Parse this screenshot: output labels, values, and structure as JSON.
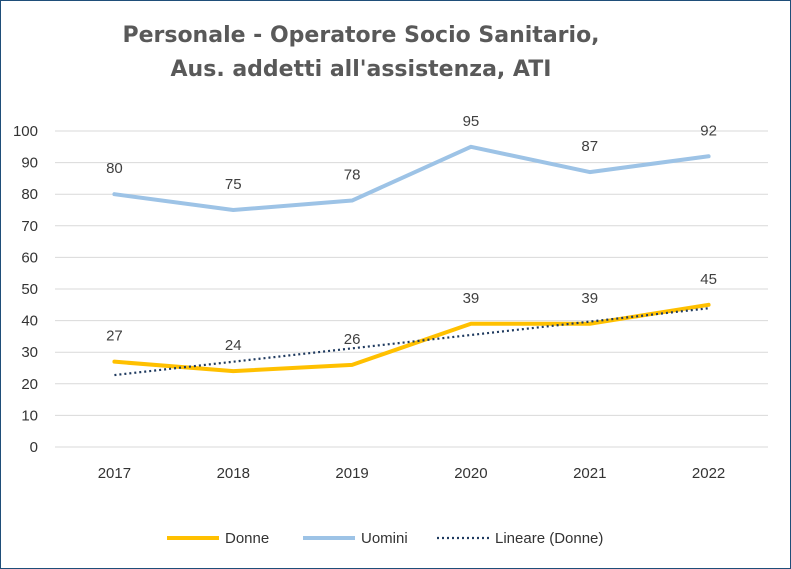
{
  "chart_data": {
    "type": "line",
    "title_lines": [
      "Personale - Operatore Socio Sanitario,",
      "Aus. addetti all'assistenza, ATI"
    ],
    "categories": [
      "2017",
      "2018",
      "2019",
      "2020",
      "2021",
      "2022"
    ],
    "ylim": [
      0,
      100
    ],
    "yticks": [
      0,
      10,
      20,
      30,
      40,
      50,
      60,
      70,
      80,
      90,
      100
    ],
    "grid": true,
    "legend_position": "bottom",
    "series": [
      {
        "name": "Donne",
        "values": [
          27,
          24,
          26,
          39,
          39,
          45
        ],
        "color": "#ffc000",
        "style": "solid"
      },
      {
        "name": "Uomini",
        "values": [
          80,
          75,
          78,
          95,
          87,
          92
        ],
        "color": "#9dc3e6",
        "style": "solid"
      }
    ],
    "trendline": {
      "name": "Lineare (Donne)",
      "of_series": "Donne",
      "type": "linear",
      "color": "#1f3a5f",
      "style": "dotted"
    }
  }
}
